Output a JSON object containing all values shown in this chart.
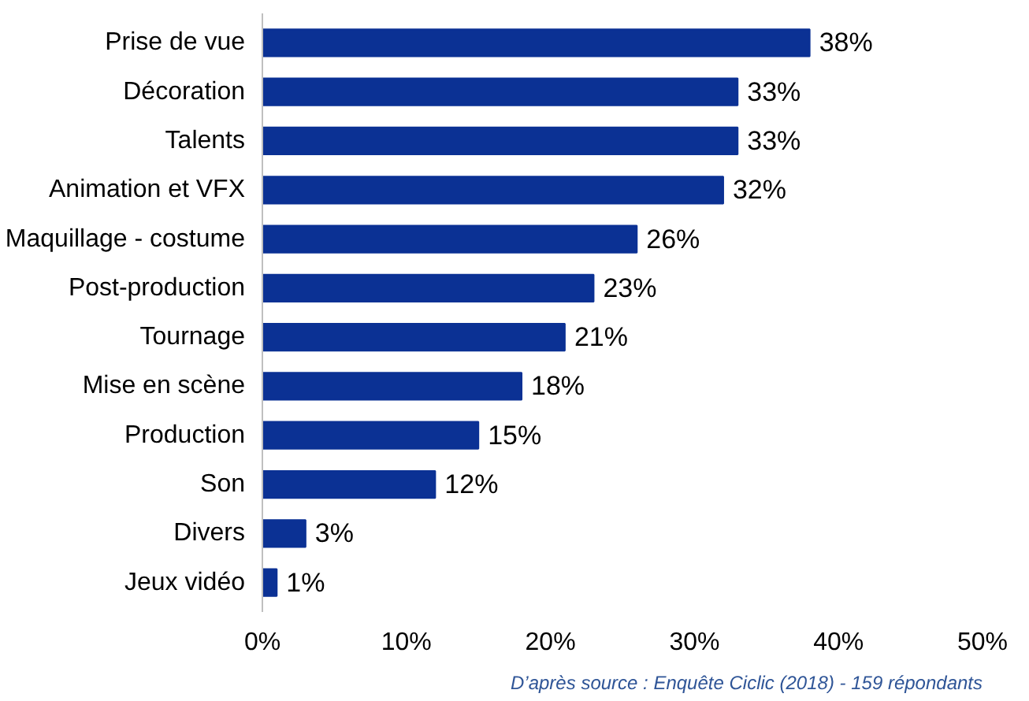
{
  "chart_data": {
    "type": "bar",
    "orientation": "horizontal",
    "categories": [
      "Prise de vue",
      "Décoration",
      "Talents",
      "Animation et VFX",
      "Maquillage - costume",
      "Post-production",
      "Tournage",
      "Mise en scène",
      "Production",
      "Son",
      "Divers",
      "Jeux vidéo"
    ],
    "values": [
      38,
      33,
      33,
      32,
      26,
      23,
      21,
      18,
      15,
      12,
      3,
      1
    ],
    "value_labels": [
      "38%",
      "33%",
      "33%",
      "32%",
      "26%",
      "23%",
      "21%",
      "18%",
      "15%",
      "12%",
      "3%",
      "1%"
    ],
    "color": "#0b3194",
    "xlim": [
      0,
      50
    ],
    "xticks": [
      {
        "value": 0,
        "label": "0%"
      },
      {
        "value": 10,
        "label": "10%"
      },
      {
        "value": 20,
        "label": "20%"
      },
      {
        "value": 30,
        "label": "30%"
      },
      {
        "value": 40,
        "label": "40%"
      },
      {
        "value": 50,
        "label": "50%"
      }
    ],
    "grid": false,
    "annotations": [
      "D’après source : Enquête Ciclic (2018) - 159 répondants"
    ]
  }
}
